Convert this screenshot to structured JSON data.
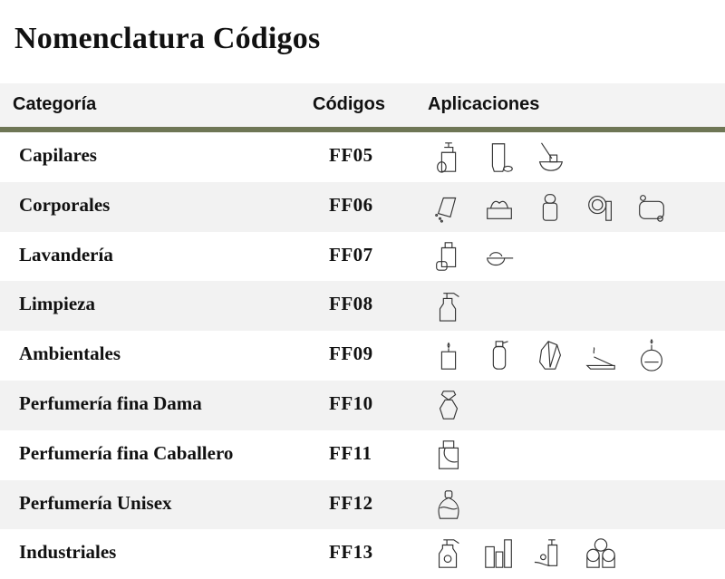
{
  "title": "Nomenclatura Códigos",
  "columns": {
    "category": "Categoría",
    "codes": "Códigos",
    "applications": "Aplicaciones"
  },
  "accent_color": "#6e7655",
  "rows": [
    {
      "category": "Capilares",
      "code": "FF05",
      "icons": [
        "pump-bottle-icon",
        "cream-tube-icon",
        "hair-mask-bowl-icon"
      ]
    },
    {
      "category": "Corporales",
      "code": "FF06",
      "icons": [
        "talc-powder-icon",
        "cream-jar-icon",
        "roll-on-deodorant-icon",
        "compact-makeup-icon",
        "soap-bar-icon"
      ]
    },
    {
      "category": "Lavandería",
      "code": "FF07",
      "icons": [
        "detergent-bottle-icon",
        "powder-scoop-icon"
      ]
    },
    {
      "category": "Limpieza",
      "code": "FF08",
      "icons": [
        "spray-bottle-icon"
      ]
    },
    {
      "category": "Ambientales",
      "code": "FF09",
      "icons": [
        "candle-icon",
        "air-freshener-spray-icon",
        "crystals-icon",
        "incense-stick-icon",
        "oil-diffuser-icon"
      ]
    },
    {
      "category": "Perfumería fina Dama",
      "code": "FF10",
      "icons": [
        "women-perfume-bottle-icon"
      ]
    },
    {
      "category": "Perfumería fina Caballero",
      "code": "FF11",
      "icons": [
        "men-perfume-bottle-icon"
      ]
    },
    {
      "category": "Perfumería Unisex",
      "code": "FF12",
      "icons": [
        "unisex-perfume-bottle-icon"
      ]
    },
    {
      "category": "Industriales",
      "code": "FF13",
      "icons": [
        "insecticide-spray-icon",
        "plastic-containers-icon",
        "hand-soap-icon",
        "paper-rolls-icon"
      ]
    }
  ]
}
